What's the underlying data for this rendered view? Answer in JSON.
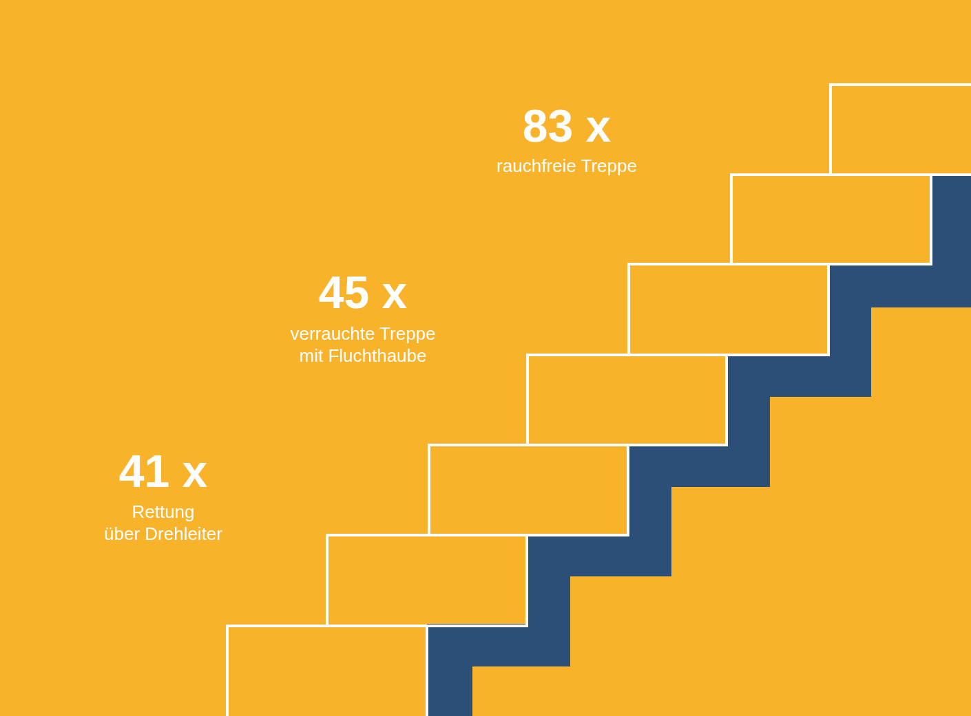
{
  "chart_data": {
    "type": "other",
    "categories": [
      "Rettung\nüber Drehleiter",
      "verrauchte Treppe\nmit Fluchthaube",
      "rauchfreie Treppe"
    ],
    "values": [
      41,
      45,
      83
    ],
    "value_labels": [
      "41 x",
      "45 x",
      "83 x"
    ]
  }
}
